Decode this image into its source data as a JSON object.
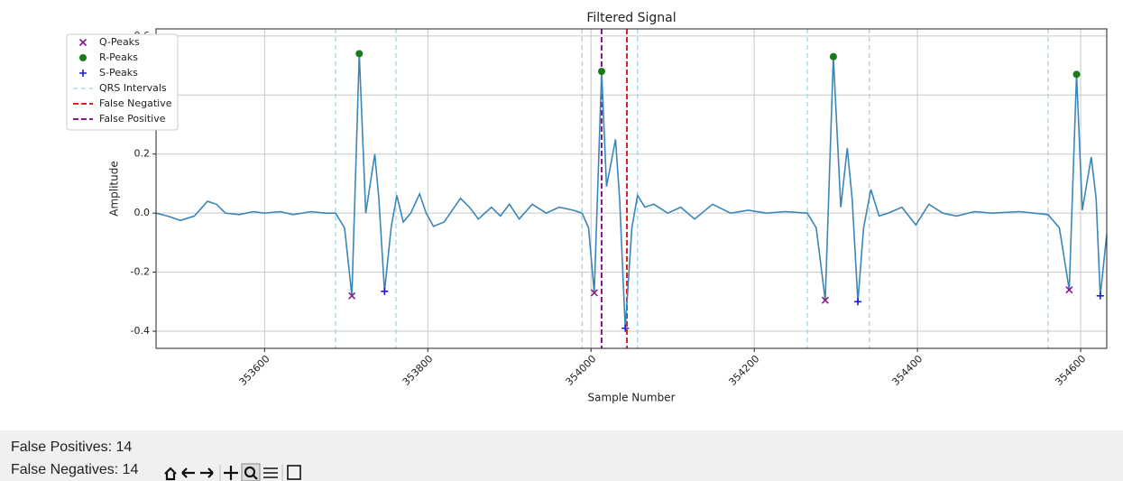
{
  "chart_data": {
    "type": "line",
    "title": "Filtered Signal",
    "xlabel": "Sample Number",
    "ylabel": "Amplitude",
    "xlim": [
      353467,
      354632
    ],
    "ylim": [
      -0.458,
      0.624
    ],
    "xticks": [
      353600,
      353800,
      354000,
      354200,
      354400,
      354600
    ],
    "yticks": [
      -0.4,
      -0.2,
      {
        "value": 0,
        "label": "0.0"
      },
      0.2,
      0.4,
      0.6
    ],
    "grid": true,
    "legend": "upper left",
    "signal": {
      "color": "#3a86b8",
      "x": [
        353467,
        353481,
        353497,
        353514,
        353530,
        353541,
        353552,
        353569,
        353586,
        353600,
        353619,
        353635,
        353657,
        353674,
        353687,
        353698,
        353707,
        353716,
        353724,
        353735,
        353740,
        353747,
        353755,
        353762,
        353770,
        353779,
        353790,
        353798,
        353807,
        353820,
        353840,
        353851,
        353862,
        353878,
        353889,
        353900,
        353912,
        353928,
        353945,
        353961,
        353978,
        353989,
        353997,
        354004,
        354013,
        354019,
        354030,
        354035,
        354042,
        354050,
        354057,
        354066,
        354077,
        354094,
        354110,
        354127,
        354149,
        354171,
        354193,
        354215,
        354238,
        354265,
        354276,
        354287,
        354297,
        354306,
        354314,
        354320,
        354327,
        354334,
        354343,
        354353,
        354364,
        354381,
        354398,
        354414,
        354431,
        354448,
        354470,
        354492,
        354525,
        354560,
        354574,
        354586,
        354595,
        354602,
        354613,
        354619,
        354624,
        354632
      ],
      "values": [
        0.0,
        -0.01,
        -0.025,
        -0.01,
        0.04,
        0.03,
        0.0,
        -0.005,
        0.005,
        0.0,
        0.005,
        -0.005,
        0.005,
        0.0,
        0.0,
        -0.05,
        -0.28,
        0.54,
        0.0,
        0.2,
        0.05,
        -0.265,
        -0.05,
        0.06,
        -0.03,
        0.0,
        0.065,
        0.0,
        -0.045,
        -0.03,
        0.05,
        0.02,
        -0.02,
        0.02,
        -0.01,
        0.03,
        -0.02,
        0.03,
        0.0,
        0.02,
        0.01,
        0.0,
        -0.05,
        -0.27,
        0.48,
        0.09,
        0.25,
        0.05,
        -0.39,
        -0.05,
        0.06,
        0.02,
        0.03,
        0.0,
        0.02,
        -0.02,
        0.03,
        0.0,
        0.01,
        0.0,
        0.005,
        0.0,
        -0.05,
        -0.295,
        0.53,
        0.02,
        0.22,
        0.05,
        -0.3,
        -0.05,
        0.08,
        -0.01,
        0.0,
        0.02,
        -0.04,
        0.03,
        0.0,
        -0.01,
        0.005,
        0.0,
        0.005,
        -0.005,
        -0.05,
        -0.26,
        0.47,
        0.01,
        0.19,
        0.05,
        -0.28,
        -0.07
      ]
    },
    "markers": [
      {
        "name": "Q-Peaks",
        "color": "#8b1a8b",
        "marker": "x",
        "x": [
          353707,
          354004,
          354287,
          354586
        ],
        "values": [
          -0.28,
          -0.27,
          -0.295,
          -0.26
        ]
      },
      {
        "name": "R-Peaks",
        "color": "#1a7a1a",
        "marker": "o",
        "x": [
          353716,
          354013,
          354297,
          354595
        ],
        "values": [
          0.54,
          0.48,
          0.53,
          0.47
        ]
      },
      {
        "name": "S-Peaks",
        "color": "#1a1adb",
        "marker": "+",
        "x": [
          353747,
          354042,
          354327,
          354624
        ],
        "values": [
          -0.265,
          -0.39,
          -0.3,
          -0.28
        ]
      }
    ],
    "vlines": [
      {
        "name": "QRS Intervals",
        "color": "#9fd3e8",
        "x": [
          353687,
          353761,
          353989,
          354057,
          354265,
          354341,
          354560
        ]
      },
      {
        "name": "False Negative",
        "color": "#e02020",
        "x": [
          354044
        ]
      },
      {
        "name": "False Positive",
        "color": "#8b1a8b",
        "x": [
          354013
        ]
      }
    ]
  },
  "status": {
    "false_positives": {
      "label": "False Positives:",
      "value": 14
    },
    "false_negatives": {
      "label": "False Negatives:",
      "value": 14
    }
  }
}
